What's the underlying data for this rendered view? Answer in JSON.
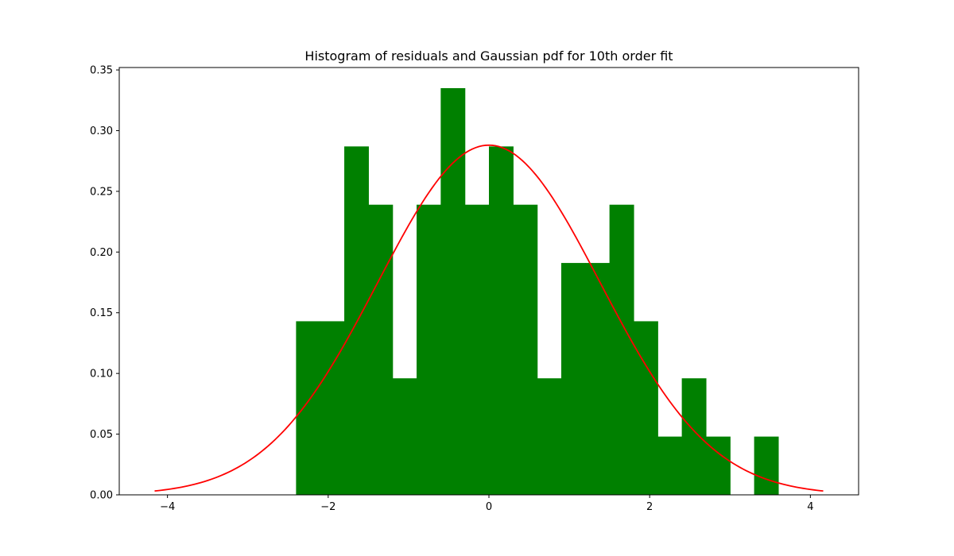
{
  "chart_data": {
    "type": "bar",
    "title": "Histogram of residuals and Gaussian pdf for 10th order fit",
    "xlabel": "",
    "ylabel": "",
    "xlim": [
      -4.6,
      4.6
    ],
    "ylim": [
      0,
      0.352
    ],
    "xticks": [
      -4,
      -2,
      0,
      2,
      4
    ],
    "xtick_labels": [
      "−4",
      "−2",
      "0",
      "2",
      "4"
    ],
    "yticks": [
      0.0,
      0.05,
      0.1,
      0.15,
      0.2,
      0.25,
      0.3,
      0.35
    ],
    "ytick_labels": [
      "0.00",
      "0.05",
      "0.10",
      "0.15",
      "0.20",
      "0.25",
      "0.30",
      "0.35"
    ],
    "grid": false,
    "bar_color": "#008000",
    "curve_color": "#ff0000",
    "histogram": {
      "bin_edges": [
        -2.4,
        -2.1,
        -1.8,
        -1.5,
        -1.2,
        -0.9,
        -0.6,
        -0.3,
        0.0,
        0.3,
        0.6,
        0.9,
        1.2,
        1.5,
        1.8,
        2.1,
        2.4,
        2.7,
        3.0,
        3.3,
        3.6
      ],
      "densities": [
        0.143,
        0.143,
        0.287,
        0.239,
        0.096,
        0.239,
        0.335,
        0.239,
        0.287,
        0.239,
        0.096,
        0.191,
        0.191,
        0.239,
        0.143,
        0.048,
        0.096,
        0.048,
        0.0,
        0.048
      ]
    },
    "gaussian_pdf": {
      "mean": 0.0,
      "std": 1.385,
      "x_range": [
        -4.16,
        4.16
      ]
    }
  }
}
